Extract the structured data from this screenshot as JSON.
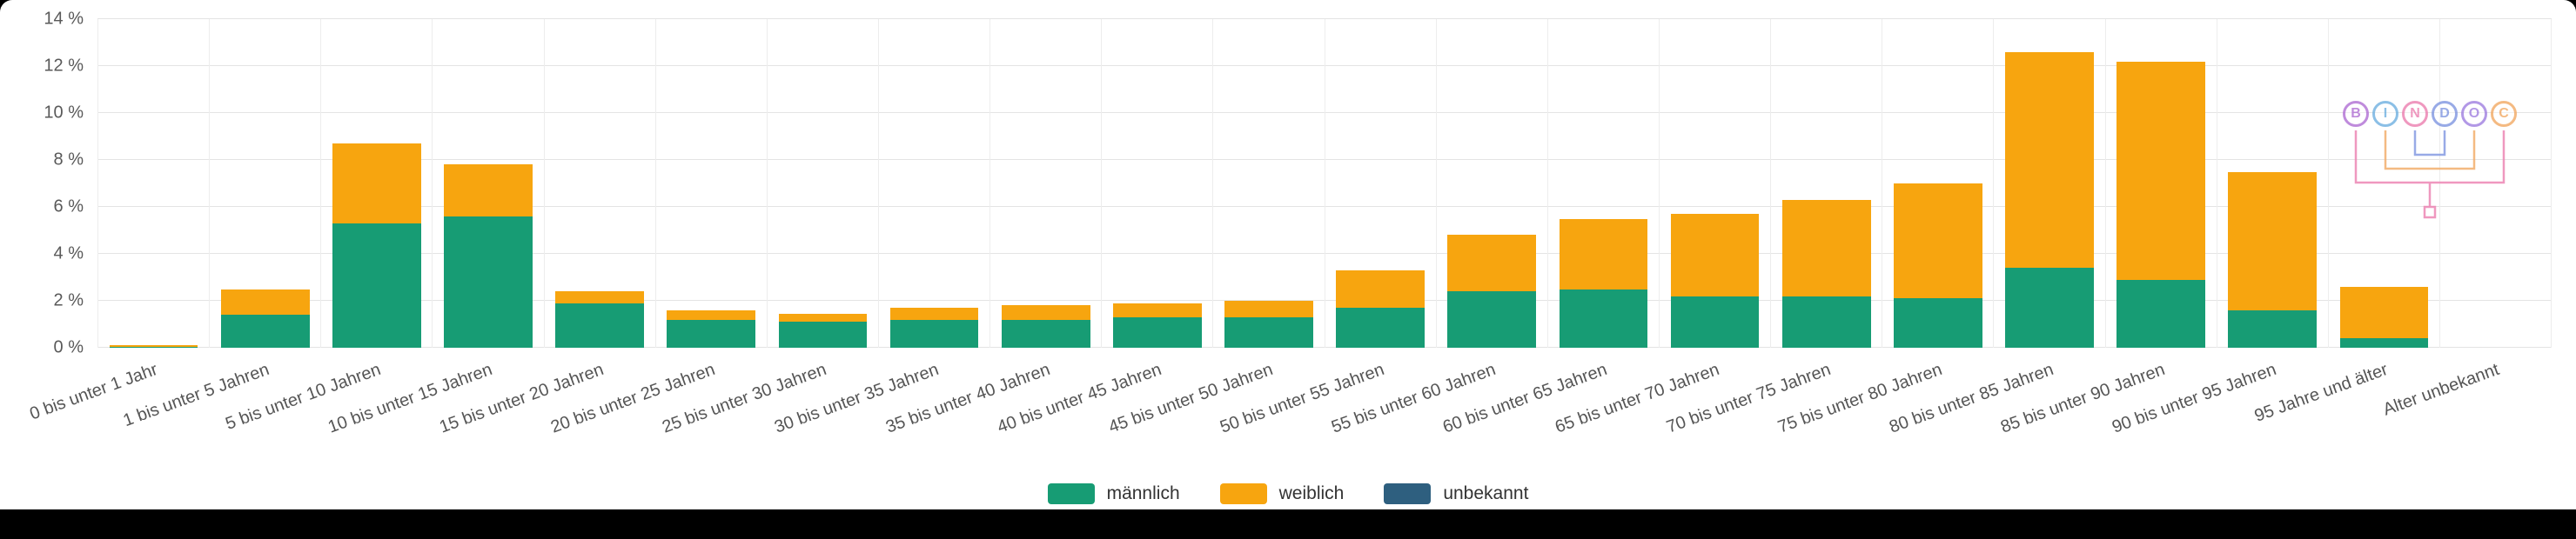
{
  "page": {
    "background": "#ffffff",
    "bottom_bar_color": "#000000"
  },
  "chart_data": {
    "type": "bar",
    "stacked": true,
    "title": "",
    "xlabel": "",
    "ylabel": "",
    "ylim": [
      0,
      14
    ],
    "yticks": [
      0,
      2,
      4,
      6,
      8,
      10,
      12,
      14
    ],
    "ytick_suffix": " %",
    "grid": true,
    "legend_position": "bottom",
    "categories": [
      "0 bis unter 1 Jahr",
      "1 bis unter 5 Jahren",
      "5 bis unter 10 Jahren",
      "10 bis unter 15 Jahren",
      "15 bis unter 20 Jahren",
      "20 bis unter 25 Jahren",
      "25 bis unter 30 Jahren",
      "30 bis unter 35 Jahren",
      "35 bis unter 40 Jahren",
      "40 bis unter 45 Jahren",
      "45 bis unter 50 Jahren",
      "50 bis unter 55 Jahren",
      "55 bis unter 60 Jahren",
      "60 bis unter 65 Jahren",
      "65 bis unter 70 Jahren",
      "70 bis unter 75 Jahren",
      "75 bis unter 80 Jahren",
      "80 bis unter 85 Jahren",
      "85 bis unter 90 Jahren",
      "90 bis unter 95 Jahren",
      "95 Jahre und älter",
      "Alter unbekannt"
    ],
    "series": [
      {
        "name": "männlich",
        "color": "#179c74",
        "values": [
          0.05,
          1.4,
          5.3,
          5.6,
          1.9,
          1.2,
          1.1,
          1.2,
          1.2,
          1.3,
          1.3,
          1.7,
          2.4,
          2.5,
          2.2,
          2.2,
          2.1,
          3.4,
          2.9,
          1.6,
          0.4,
          0
        ]
      },
      {
        "name": "weiblich",
        "color": "#f7a50f",
        "values": [
          0.05,
          1.1,
          3.4,
          2.2,
          0.5,
          0.4,
          0.35,
          0.5,
          0.6,
          0.6,
          0.7,
          1.6,
          2.4,
          3.0,
          3.5,
          4.1,
          4.9,
          9.2,
          9.3,
          5.9,
          2.2,
          0
        ]
      },
      {
        "name": "unbekannt",
        "color": "#2e5f7f",
        "values": [
          0,
          0,
          0,
          0,
          0,
          0,
          0,
          0,
          0,
          0,
          0,
          0,
          0,
          0,
          0,
          0,
          0,
          0,
          0,
          0,
          0,
          0
        ]
      }
    ]
  },
  "logo": {
    "name": "BINDOC",
    "letters": [
      {
        "char": "B",
        "color": "#b06fd4"
      },
      {
        "char": "I",
        "color": "#6fb0e0"
      },
      {
        "char": "N",
        "color": "#ec7fb0"
      },
      {
        "char": "D",
        "color": "#7f96e0"
      },
      {
        "char": "O",
        "color": "#a07fe0"
      },
      {
        "char": "C",
        "color": "#f2a964"
      }
    ]
  }
}
